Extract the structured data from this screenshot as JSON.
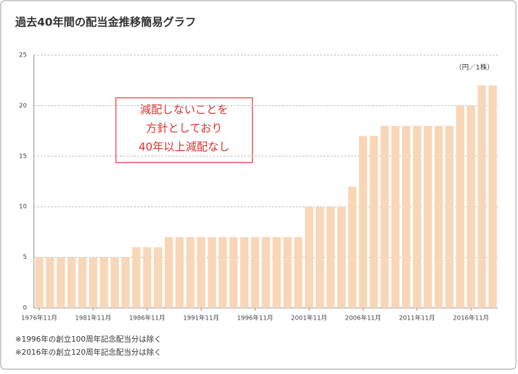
{
  "chart_data": {
    "type": "bar",
    "title": "過去40年間の配当金推移簡易グラフ",
    "unit_label": "（円／1株）",
    "annotation": [
      "減配しないことを",
      "方針としており",
      "40年以上減配なし"
    ],
    "footnotes": [
      "※1996年の創立100周年記念配当分は除く",
      "※2016年の創立120周年記念配当分は除く"
    ],
    "categories": [
      "1976年11月",
      null,
      null,
      null,
      null,
      "1981年11月",
      null,
      null,
      null,
      null,
      "1986年11月",
      null,
      null,
      null,
      null,
      "1991年11月",
      null,
      null,
      null,
      null,
      "1996年11月",
      null,
      null,
      null,
      null,
      "2001年11月",
      null,
      null,
      null,
      null,
      "2006年11月",
      null,
      null,
      null,
      null,
      "2011年11月",
      null,
      null,
      null,
      null,
      "2016年11月",
      null,
      null
    ],
    "values": [
      5,
      5,
      5,
      5,
      5,
      5,
      5,
      5,
      5,
      6,
      6,
      6,
      7,
      7,
      7,
      7,
      7,
      7,
      7,
      7,
      7,
      7,
      7,
      7,
      7,
      10,
      10,
      10,
      10,
      12,
      17,
      17,
      18,
      18,
      18,
      18,
      18,
      18,
      18,
      20,
      20,
      22,
      22
    ],
    "color": "#f8d6b6",
    "ylim": [
      0,
      25
    ],
    "yticks": [
      0,
      5,
      10,
      15,
      20,
      25
    ],
    "grid": true
  }
}
